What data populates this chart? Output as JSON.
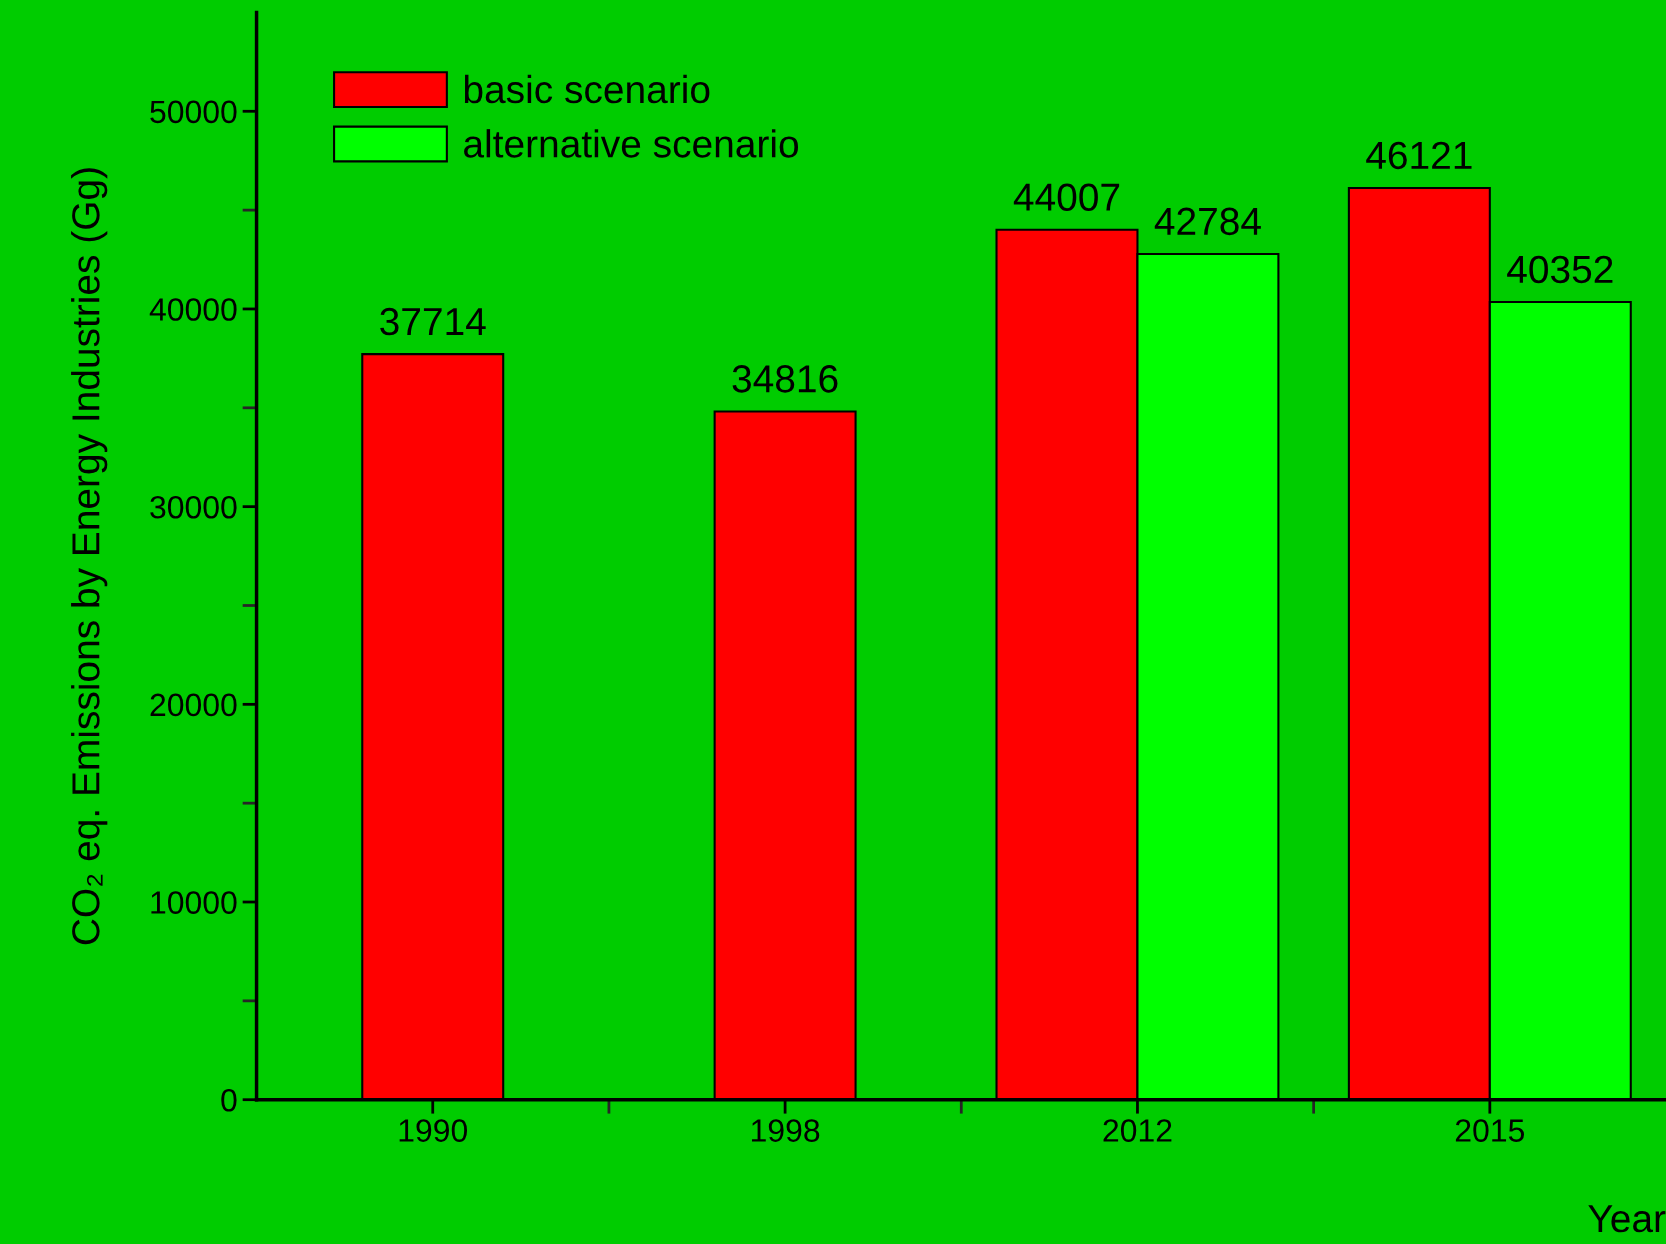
{
  "chart_data": {
    "type": "bar",
    "categories": [
      "1990",
      "1998",
      "2012",
      "2015"
    ],
    "series": [
      {
        "name": "basic scenario",
        "color": "#ff0000",
        "values": [
          37714,
          34816,
          44007,
          46121
        ]
      },
      {
        "name": "alternative scenario",
        "color": "#00ff00",
        "values": [
          null,
          null,
          42784,
          40352
        ]
      }
    ],
    "xlabel": "Year",
    "ylabel": "CO₂ eq. Emissions by Energy Industries (Gg)",
    "ylim": [
      0,
      55000
    ],
    "yticks": [
      0,
      10000,
      20000,
      30000,
      40000,
      50000
    ],
    "data_labels": true,
    "legend": "top left",
    "grid": false
  }
}
